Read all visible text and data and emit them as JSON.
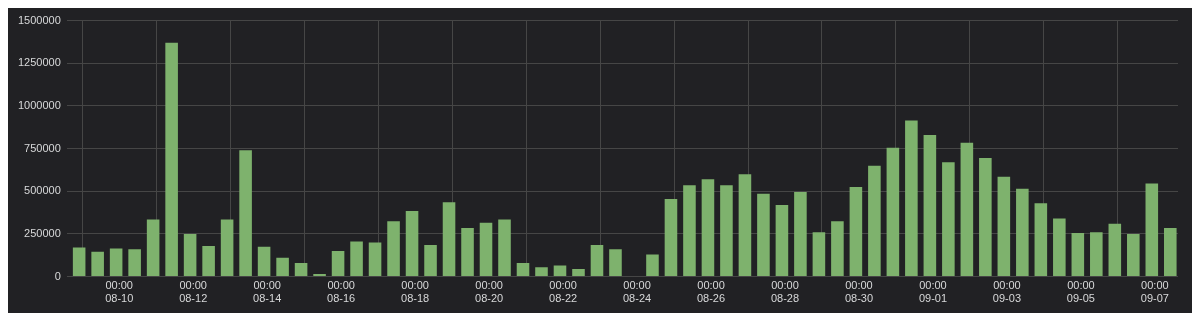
{
  "chart_data": {
    "type": "bar",
    "x": [
      "--08-08T22:00",
      "--08-09T10:00",
      "--08-09T22:00",
      "--08-10T10:00",
      "--08-10T22:00",
      "--08-11T10:00",
      "--08-11T22:00",
      "--08-12T10:00",
      "--08-12T22:00",
      "--08-13T10:00",
      "--08-13T22:00",
      "--08-14T10:00",
      "--08-14T22:00",
      "--08-15T10:00",
      "--08-15T22:00",
      "--08-16T10:00",
      "--08-16T22:00",
      "--08-17T10:00",
      "--08-17T22:00",
      "--08-18T10:00",
      "--08-18T22:00",
      "--08-19T10:00",
      "--08-19T22:00",
      "--08-20T10:00",
      "--08-20T22:00",
      "--08-21T10:00",
      "--08-21T22:00",
      "--08-22T10:00",
      "--08-22T22:00",
      "--08-23T10:00",
      "--08-23T22:00",
      "--08-24T10:00",
      "--08-24T22:00",
      "--08-25T10:00",
      "--08-25T22:00",
      "--08-26T10:00",
      "--08-26T22:00",
      "--08-27T10:00",
      "--08-27T22:00",
      "--08-28T10:00",
      "--08-28T22:00",
      "--08-29T10:00",
      "--08-29T22:00",
      "--08-30T10:00",
      "--08-30T22:00",
      "--08-31T10:00",
      "--08-31T22:00",
      "--09-01T10:00",
      "--09-01T22:00",
      "--09-02T10:00",
      "--09-02T22:00",
      "--09-03T10:00",
      "--09-03T22:00",
      "--09-04T10:00",
      "--09-04T22:00",
      "--09-05T10:00",
      "--09-05T22:00",
      "--09-06T10:00",
      "--09-06T22:00",
      "--09-07T10:00"
    ],
    "values": [
      170000,
      145000,
      165000,
      160000,
      335000,
      1370000,
      250000,
      180000,
      335000,
      740000,
      175000,
      110000,
      80000,
      15000,
      150000,
      205000,
      200000,
      325000,
      385000,
      185000,
      435000,
      285000,
      315000,
      335000,
      80000,
      55000,
      65000,
      45000,
      185000,
      160000,
      null,
      130000,
      455000,
      535000,
      570000,
      535000,
      600000,
      485000,
      420000,
      495000,
      260000,
      325000,
      525000,
      650000,
      755000,
      915000,
      830000,
      670000,
      785000,
      695000,
      585000,
      515000,
      430000,
      340000,
      255000,
      260000,
      310000,
      250000,
      545000,
      285000
    ],
    "color": "#7eb26d",
    "xticks": [
      {
        "value": "--08-10T00:00",
        "label": "00:00\n08-10"
      },
      {
        "value": "--08-12T00:00",
        "label": "00:00\n08-12"
      },
      {
        "value": "--08-14T00:00",
        "label": "00:00\n08-14"
      },
      {
        "value": "--08-16T00:00",
        "label": "00:00\n08-16"
      },
      {
        "value": "--08-18T00:00",
        "label": "00:00\n08-18"
      },
      {
        "value": "--08-20T00:00",
        "label": "00:00\n08-20"
      },
      {
        "value": "--08-22T00:00",
        "label": "00:00\n08-22"
      },
      {
        "value": "--08-24T00:00",
        "label": "00:00\n08-24"
      },
      {
        "value": "--08-26T00:00",
        "label": "00:00\n08-26"
      },
      {
        "value": "--08-28T00:00",
        "label": "00:00\n08-28"
      },
      {
        "value": "--08-30T00:00",
        "label": "00:00\n08-30"
      },
      {
        "value": "--09-01T00:00",
        "label": "00:00\n09-01"
      },
      {
        "value": "--09-03T00:00",
        "label": "00:00\n09-03"
      },
      {
        "value": "--09-05T00:00",
        "label": "00:00\n09-05"
      },
      {
        "value": "--09-07T00:00",
        "label": "00:00\n09-07"
      }
    ],
    "xlim": [
      "--08-08T14:00",
      "--09-07T15:00"
    ],
    "ylim": [
      0,
      1500000
    ],
    "yticks": [
      0,
      250000,
      500000,
      750000,
      1000000,
      1250000,
      1500000
    ],
    "grid": true,
    "legend": false
  }
}
